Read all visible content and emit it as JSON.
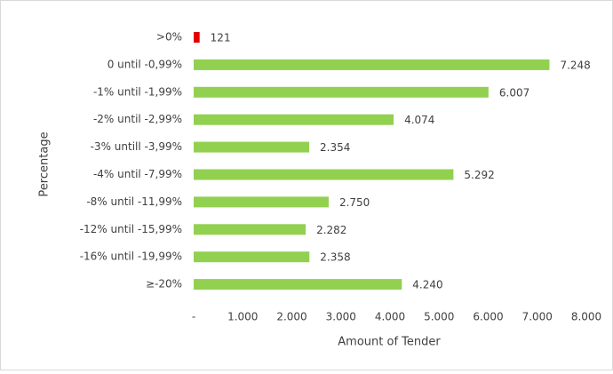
{
  "chart_data": {
    "type": "barh",
    "x_label": "Amount of Tender",
    "y_label": "Percentage",
    "categories": [
      ">0%",
      "0 until -0,99%",
      "-1% until -1,99%",
      "-2% until -2,99%",
      "-3% untill -3,99%",
      "-4% until -7,99%",
      "-8% until -11,99%",
      "-12% until -15,99%",
      "-16% until -19,99%",
      "≥-20%"
    ],
    "values": [
      121,
      7248,
      6007,
      4074,
      2354,
      5292,
      2750,
      2282,
      2358,
      4240
    ],
    "value_labels": [
      "121",
      "7.248",
      "6.007",
      "4.074",
      "2.354",
      "5.292",
      "2.750",
      "2.282",
      "2.358",
      "4.240"
    ],
    "colors": [
      "#e00000",
      "#92d050",
      "#92d050",
      "#92d050",
      "#92d050",
      "#92d050",
      "#92d050",
      "#92d050",
      "#92d050",
      "#92d050"
    ],
    "xlim": [
      0,
      8000
    ],
    "xticks": [
      {
        "value": 0,
        "label": "-"
      },
      {
        "value": 1000,
        "label": "1.000"
      },
      {
        "value": 2000,
        "label": "2.000"
      },
      {
        "value": 3000,
        "label": "3.000"
      },
      {
        "value": 4000,
        "label": "4.000"
      },
      {
        "value": 5000,
        "label": "5.000"
      },
      {
        "value": 6000,
        "label": "6.000"
      },
      {
        "value": 7000,
        "label": "7.000"
      },
      {
        "value": 8000,
        "label": "8.000"
      }
    ],
    "grid": false
  }
}
